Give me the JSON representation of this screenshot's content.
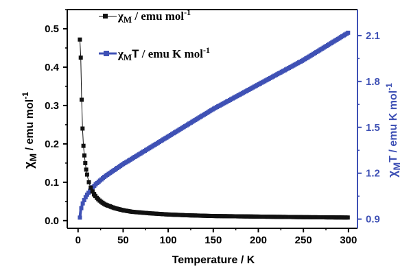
{
  "colors": {
    "chiM": "#111111",
    "chiMT": "#3f51b5",
    "axis": "#000000",
    "right_axis": "#3f51b5"
  },
  "chart_data": {
    "type": "scatter",
    "x_axis": {
      "label": "Temperature / K",
      "range": [
        -12,
        310
      ],
      "ticks": [
        0,
        50,
        100,
        150,
        200,
        250,
        300
      ]
    },
    "y_left": {
      "label": "χM / emu mol-1",
      "range": [
        -0.02,
        0.55
      ],
      "ticks": [
        0.0,
        0.1,
        0.2,
        0.3,
        0.4,
        0.5
      ],
      "tick_labels": [
        "0.0",
        "0.1",
        "0.2",
        "0.3",
        "0.4",
        "0.5"
      ]
    },
    "y_right": {
      "label": "χMT / emu K mol-1",
      "range": [
        0.84,
        2.27
      ],
      "ticks": [
        0.9,
        1.2,
        1.5,
        1.8,
        2.1
      ],
      "tick_labels": [
        "0.9",
        "1.2",
        "1.5",
        "1.8",
        "2.1"
      ]
    },
    "legend": [
      {
        "symbol": "χ",
        "sub": "M",
        "text": " / emu mol",
        "sup": "-1"
      },
      {
        "symbol": "χ",
        "sub": "M",
        "mid": "T",
        "text": " / emu K mol",
        "sup": "-1"
      }
    ],
    "series": [
      {
        "axis": "left",
        "x": [
          2,
          3,
          4,
          5,
          6,
          7,
          8,
          9,
          10,
          12,
          14,
          16,
          18,
          20,
          25,
          30,
          40,
          50,
          60,
          80,
          100,
          120,
          150,
          200,
          250,
          300
        ],
        "values": [
          0.472,
          0.425,
          0.315,
          0.24,
          0.195,
          0.17,
          0.15,
          0.133,
          0.12,
          0.1,
          0.086,
          0.076,
          0.068,
          0.061,
          0.05,
          0.042,
          0.033,
          0.027,
          0.023,
          0.019,
          0.016,
          0.014,
          0.012,
          0.0105,
          0.009,
          0.008
        ]
      },
      {
        "axis": "right",
        "x": [
          2,
          3,
          5,
          8,
          10,
          15,
          20,
          30,
          40,
          50,
          75,
          100,
          125,
          150,
          175,
          200,
          225,
          250,
          275,
          300
        ],
        "values": [
          0.91,
          0.96,
          1.0,
          1.04,
          1.06,
          1.1,
          1.13,
          1.18,
          1.22,
          1.26,
          1.35,
          1.44,
          1.53,
          1.62,
          1.7,
          1.78,
          1.86,
          1.94,
          2.03,
          2.12
        ]
      }
    ]
  }
}
